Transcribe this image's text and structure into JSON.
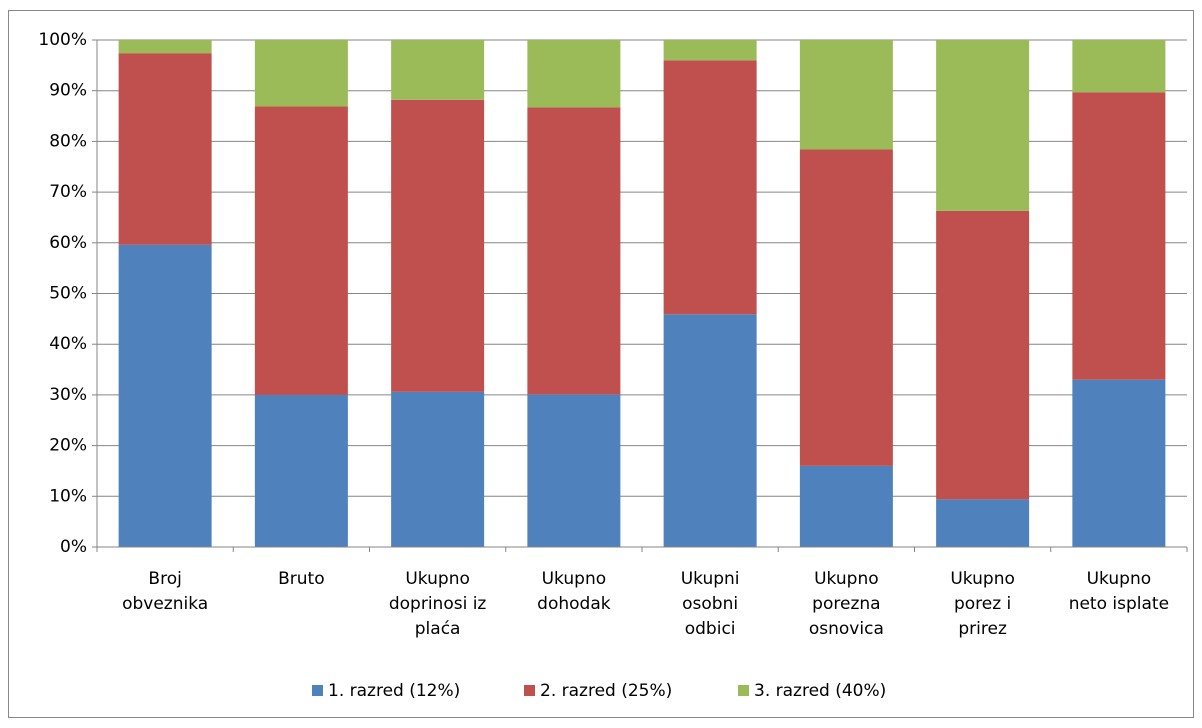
{
  "chart_data": {
    "type": "stacked_bar_100",
    "categories": [
      "Broj\nobveznika",
      "Bruto",
      "Ukupno\ndoprinosi iz\nplaća",
      "Ukupno\ndohodak",
      "Ukupni\nosobni\nodbici",
      "Ukupno\nporezna\nosnovica",
      "Ukupno\nporez i\nprirez",
      "Ukupno\nneto isplate"
    ],
    "series": [
      {
        "name": "1. razred (12%)",
        "color": "#4f81bd",
        "values": [
          59.6,
          30.0,
          30.6,
          30.1,
          45.9,
          16.0,
          9.4,
          33.0
        ]
      },
      {
        "name": "2. razred (25%)",
        "color": "#c0504d",
        "values": [
          37.8,
          56.9,
          57.6,
          56.6,
          50.1,
          62.4,
          56.9,
          56.7
        ]
      },
      {
        "name": "3. razred (40%)",
        "color": "#9bbb59",
        "values": [
          2.6,
          13.1,
          11.8,
          13.3,
          4.0,
          21.6,
          33.7,
          10.3
        ]
      }
    ],
    "ylim": [
      0,
      100
    ],
    "yticks": [
      {
        "value": 0,
        "label": "0%"
      },
      {
        "value": 10,
        "label": "10%"
      },
      {
        "value": 20,
        "label": "20%"
      },
      {
        "value": 30,
        "label": "30%"
      },
      {
        "value": 40,
        "label": "40%"
      },
      {
        "value": 50,
        "label": "50%"
      },
      {
        "value": 60,
        "label": "60%"
      },
      {
        "value": 70,
        "label": "70%"
      },
      {
        "value": 80,
        "label": "80%"
      },
      {
        "value": 90,
        "label": "90%"
      },
      {
        "value": 100,
        "label": "100%"
      }
    ],
    "grid": true,
    "legend": "bottom"
  }
}
